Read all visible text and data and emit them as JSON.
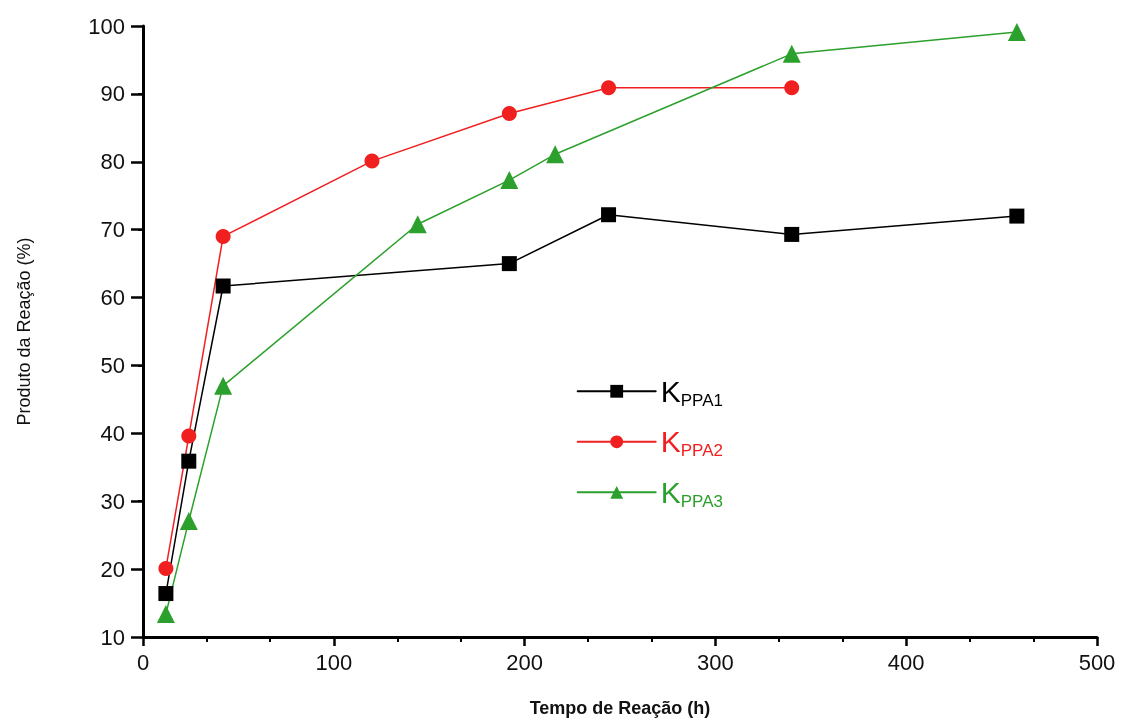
{
  "chart_data": {
    "type": "line",
    "xlabel": "Tempo de Reação (h)",
    "ylabel": "Produto da Reação (%)",
    "xlim": [
      0,
      500
    ],
    "xticks": [
      0,
      100,
      200,
      300,
      400,
      500
    ],
    "ylim": [
      10,
      100
    ],
    "yticks": [
      10,
      20,
      30,
      40,
      50,
      60,
      70,
      80,
      90,
      100
    ],
    "grid": false,
    "legend": "center",
    "line_style": "solid",
    "series": [
      {
        "name": "K$_{PPA1}$",
        "color": "#000000",
        "marker": "square",
        "x": [
          12,
          24,
          42,
          192,
          244,
          340,
          458
        ],
        "values": [
          16.4,
          35.9,
          61.7,
          65.0,
          72.2,
          69.3,
          72.0
        ]
      },
      {
        "name": "K$_{PPA2}$",
        "color": "#f02020",
        "marker": "circle",
        "x": [
          12,
          24,
          42,
          120,
          192,
          244,
          340
        ],
        "values": [
          20.1,
          39.6,
          69.0,
          80.1,
          87.1,
          90.9,
          90.9
        ]
      },
      {
        "name": "K$_{PPA3}$",
        "color": "#2ca02c",
        "marker": "triangle",
        "x": [
          12,
          24,
          42,
          144,
          192,
          216,
          340,
          458
        ],
        "values": [
          13.4,
          27.1,
          47.0,
          70.8,
          77.3,
          81.1,
          95.9,
          99.1
        ]
      }
    ]
  }
}
